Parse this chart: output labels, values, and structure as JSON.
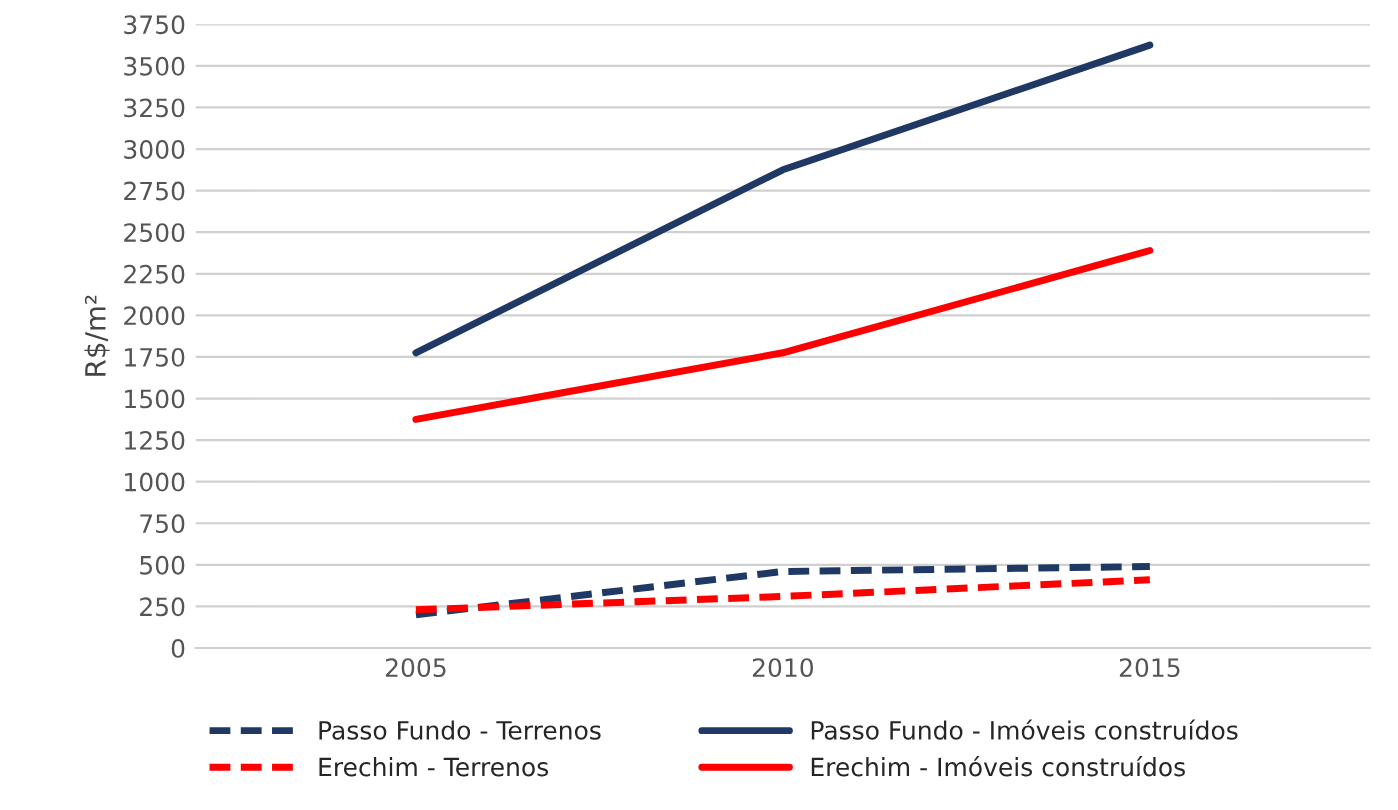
{
  "chart_data": {
    "type": "line",
    "ylabel": "R$/m²",
    "categories": [
      "2005",
      "2010",
      "2015"
    ],
    "series": [
      {
        "name": "Passo Fundo - Terrenos",
        "color": "#1f3864",
        "line_style": "dashed",
        "values": [
          200,
          460,
          490
        ]
      },
      {
        "name": "Erechim - Terrenos",
        "color": "#ff0000",
        "line_style": "dashed",
        "values": [
          230,
          310,
          410
        ]
      },
      {
        "name": "Passo Fundo - Imóveis construídos",
        "color": "#1f3864",
        "line_style": "solid",
        "values": [
          1775,
          2875,
          3625
        ]
      },
      {
        "name": "Erechim - Imóveis construídos",
        "color": "#ff0000",
        "line_style": "solid",
        "values": [
          1375,
          1775,
          2390
        ]
      }
    ],
    "ylim": [
      0,
      3750
    ],
    "yticks": [
      0,
      250,
      500,
      750,
      1000,
      1250,
      1500,
      1750,
      2000,
      2250,
      2500,
      2750,
      3000,
      3250,
      3500,
      3750
    ],
    "grid": "y",
    "legend": "bottom",
    "marker": "none"
  }
}
